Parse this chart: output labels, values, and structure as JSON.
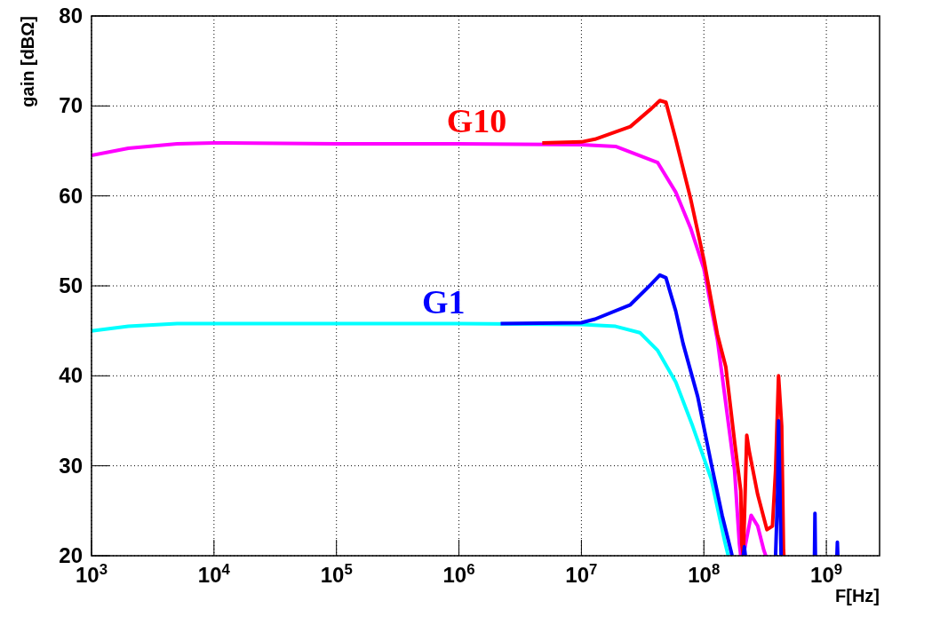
{
  "chart_data": {
    "type": "line",
    "xlabel": "F[Hz]",
    "ylabel": "gain [dBΩ]",
    "log": "x",
    "grid": true,
    "line_style": "solid",
    "marker": "none",
    "xlim": [
      1000,
      2720000000
    ],
    "xticks": [
      {
        "value": 1000,
        "label": "10$^{3}$"
      },
      {
        "value": 10000,
        "label": "10$^{4}$"
      },
      {
        "value": 100000,
        "label": "10$^{5}$"
      },
      {
        "value": 1000000,
        "label": "10$^{6}$"
      },
      {
        "value": 10000000,
        "label": "10$^{7}$"
      },
      {
        "value": 100000000,
        "label": "10$^{8}$"
      },
      {
        "value": 1000000000,
        "label": "10$^{9}$"
      }
    ],
    "ylim": [
      20,
      80
    ],
    "yticks": [
      20,
      30,
      40,
      50,
      60,
      70,
      80
    ],
    "series": [
      {
        "color": "#ff00ff",
        "x": [
          1000,
          2000,
          5000,
          10000,
          100000,
          1000000,
          10000000,
          19000000,
          42000000,
          59000000,
          78000000,
          100000000,
          129000000,
          178000000,
          195000000,
          200000000,
          205000000,
          210000000,
          214000000,
          243000000,
          275000000,
          309000000,
          320000000
        ],
        "values": [
          64.5,
          65.3,
          65.8,
          65.9,
          65.8,
          65.8,
          65.7,
          65.5,
          63.7,
          60.4,
          56.4,
          51.9,
          44,
          29.5,
          21.3,
          20,
          null,
          20,
          20.6,
          24.5,
          23.3,
          20.6,
          20
        ]
      },
      {
        "name": "G10",
        "color": "#ff0000",
        "x": [
          4790000,
          10000000,
          12900000,
          25100000,
          37200000,
          43700000,
          49000000,
          58900000,
          77600000,
          100000000,
          129000000,
          151000000,
          178000000,
          200000000,
          204000000,
          210000000,
          224000000,
          234000000,
          275000000,
          327000000,
          363000000,
          385000000,
          407000000,
          432000000,
          447000000,
          450000000
        ],
        "values": [
          65.9,
          66,
          66.3,
          67.7,
          69.7,
          70.6,
          70.4,
          66.3,
          59.8,
          52.9,
          44.6,
          41,
          32.7,
          27.2,
          21.3,
          20,
          33.4,
          31.7,
          26.8,
          22.9,
          23.3,
          29.5,
          40,
          34.4,
          20.6,
          20
        ]
      },
      {
        "color": "#00ffff",
        "x": [
          1000,
          2000,
          5000,
          10000,
          100000,
          1000000,
          10000000,
          19000000,
          30000000,
          42000000,
          59000000,
          81000000,
          115000000,
          148000000,
          158000000
        ],
        "values": [
          45,
          45.5,
          45.8,
          45.8,
          45.8,
          45.8,
          45.7,
          45.5,
          44.8,
          42.8,
          39.3,
          34.4,
          28.5,
          21.6,
          20
        ]
      },
      {
        "name": "G1",
        "color": "#0000ff",
        "x": [
          2190000,
          10000000,
          12900000,
          25100000,
          37200000,
          43700000,
          49000000,
          58900000,
          67600000,
          89000000,
          115000000,
          141000000,
          166000000,
          170000000,
          180000000,
          210000000,
          214000000,
          218000000,
          300000000,
          385000000,
          400000000,
          407000000,
          417000000,
          427000000,
          600000000,
          800000000,
          807000000,
          814000000,
          1000000000,
          1220000000,
          1230000000,
          1240000000
        ],
        "values": [
          45.8,
          45.9,
          46.3,
          47.9,
          50.2,
          51.2,
          50.9,
          47.2,
          43.6,
          37.7,
          30.2,
          24.5,
          20.6,
          20,
          null,
          20,
          21,
          20,
          null,
          20,
          27,
          35,
          28,
          20,
          null,
          20,
          24.7,
          20,
          null,
          20,
          21.5,
          20
        ]
      }
    ]
  }
}
